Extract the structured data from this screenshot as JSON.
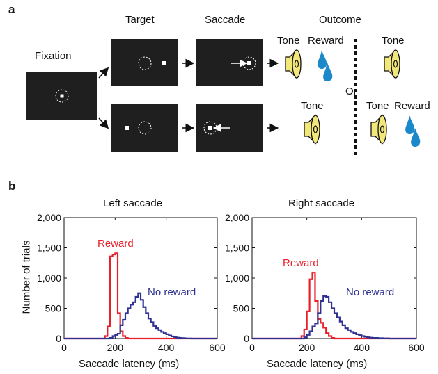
{
  "panel_a": {
    "letter": "a",
    "labels": {
      "fixation": "Fixation",
      "target": "Target",
      "saccade": "Saccade",
      "outcome": "Outcome",
      "or": "Or",
      "tone": "Tone",
      "reward": "Reward"
    },
    "colors": {
      "screen": "#1f1f1f",
      "speaker": "#f2e77a",
      "drop": "#1a88c9"
    },
    "icons": [
      "speaker-icon",
      "water-drop-icon",
      "arrow-icon"
    ]
  },
  "panel_b": {
    "letter": "b",
    "colors": {
      "reward": "#e8202a",
      "no_reward": "#2e3192"
    }
  },
  "chart_data": [
    {
      "type": "line",
      "title": "Left saccade",
      "xlabel": "Saccade latency (ms)",
      "ylabel": "Number of trials",
      "xlim": [
        0,
        600
      ],
      "ylim": [
        0,
        2000
      ],
      "xticks": [
        "0",
        "200",
        "400",
        "600"
      ],
      "yticks": [
        "0",
        "500",
        "1,000",
        "1,500",
        "2,000"
      ],
      "annotations": [
        "Reward",
        "No reward"
      ],
      "series": [
        {
          "name": "Reward",
          "x": [
            0,
            150,
            160,
            170,
            180,
            190,
            200,
            210,
            220,
            230,
            240,
            250,
            260,
            600
          ],
          "y": [
            0,
            0,
            40,
            200,
            1360,
            1390,
            1410,
            420,
            120,
            40,
            10,
            0,
            0,
            0
          ]
        },
        {
          "name": "No reward",
          "x": [
            0,
            170,
            180,
            190,
            200,
            210,
            220,
            230,
            240,
            250,
            260,
            270,
            280,
            290,
            300,
            310,
            320,
            330,
            340,
            350,
            360,
            370,
            380,
            390,
            400,
            410,
            420,
            430,
            440,
            450,
            460,
            470,
            480,
            500,
            600
          ],
          "y": [
            0,
            0,
            10,
            40,
            60,
            80,
            220,
            310,
            420,
            500,
            560,
            600,
            690,
            750,
            640,
            520,
            420,
            330,
            270,
            210,
            170,
            140,
            110,
            90,
            70,
            50,
            35,
            25,
            15,
            10,
            8,
            5,
            2,
            0,
            0
          ]
        }
      ]
    },
    {
      "type": "line",
      "title": "Right saccade",
      "xlabel": "Saccade latency (ms)",
      "ylabel": "",
      "xlim": [
        0,
        600
      ],
      "ylim": [
        0,
        2000
      ],
      "xticks": [
        "0",
        "200",
        "400",
        "600"
      ],
      "yticks": [
        "0",
        "500",
        "1,000",
        "1,500",
        "2,000"
      ],
      "annotations": [
        "Reward",
        "No reward"
      ],
      "series": [
        {
          "name": "Reward",
          "x": [
            0,
            170,
            180,
            190,
            200,
            210,
            220,
            230,
            240,
            250,
            260,
            270,
            280,
            290,
            300,
            600
          ],
          "y": [
            0,
            0,
            40,
            150,
            450,
            980,
            1090,
            620,
            320,
            260,
            180,
            90,
            40,
            10,
            0,
            0
          ]
        },
        {
          "name": "No reward",
          "x": [
            0,
            180,
            190,
            200,
            210,
            220,
            230,
            240,
            250,
            260,
            270,
            280,
            290,
            300,
            310,
            320,
            330,
            340,
            350,
            360,
            370,
            380,
            390,
            400,
            410,
            420,
            430,
            440,
            460,
            480,
            500,
            600
          ],
          "y": [
            0,
            0,
            20,
            60,
            120,
            200,
            250,
            420,
            620,
            700,
            690,
            600,
            500,
            420,
            350,
            280,
            220,
            170,
            140,
            110,
            90,
            70,
            55,
            40,
            30,
            20,
            15,
            10,
            6,
            3,
            0,
            0
          ]
        }
      ]
    }
  ]
}
